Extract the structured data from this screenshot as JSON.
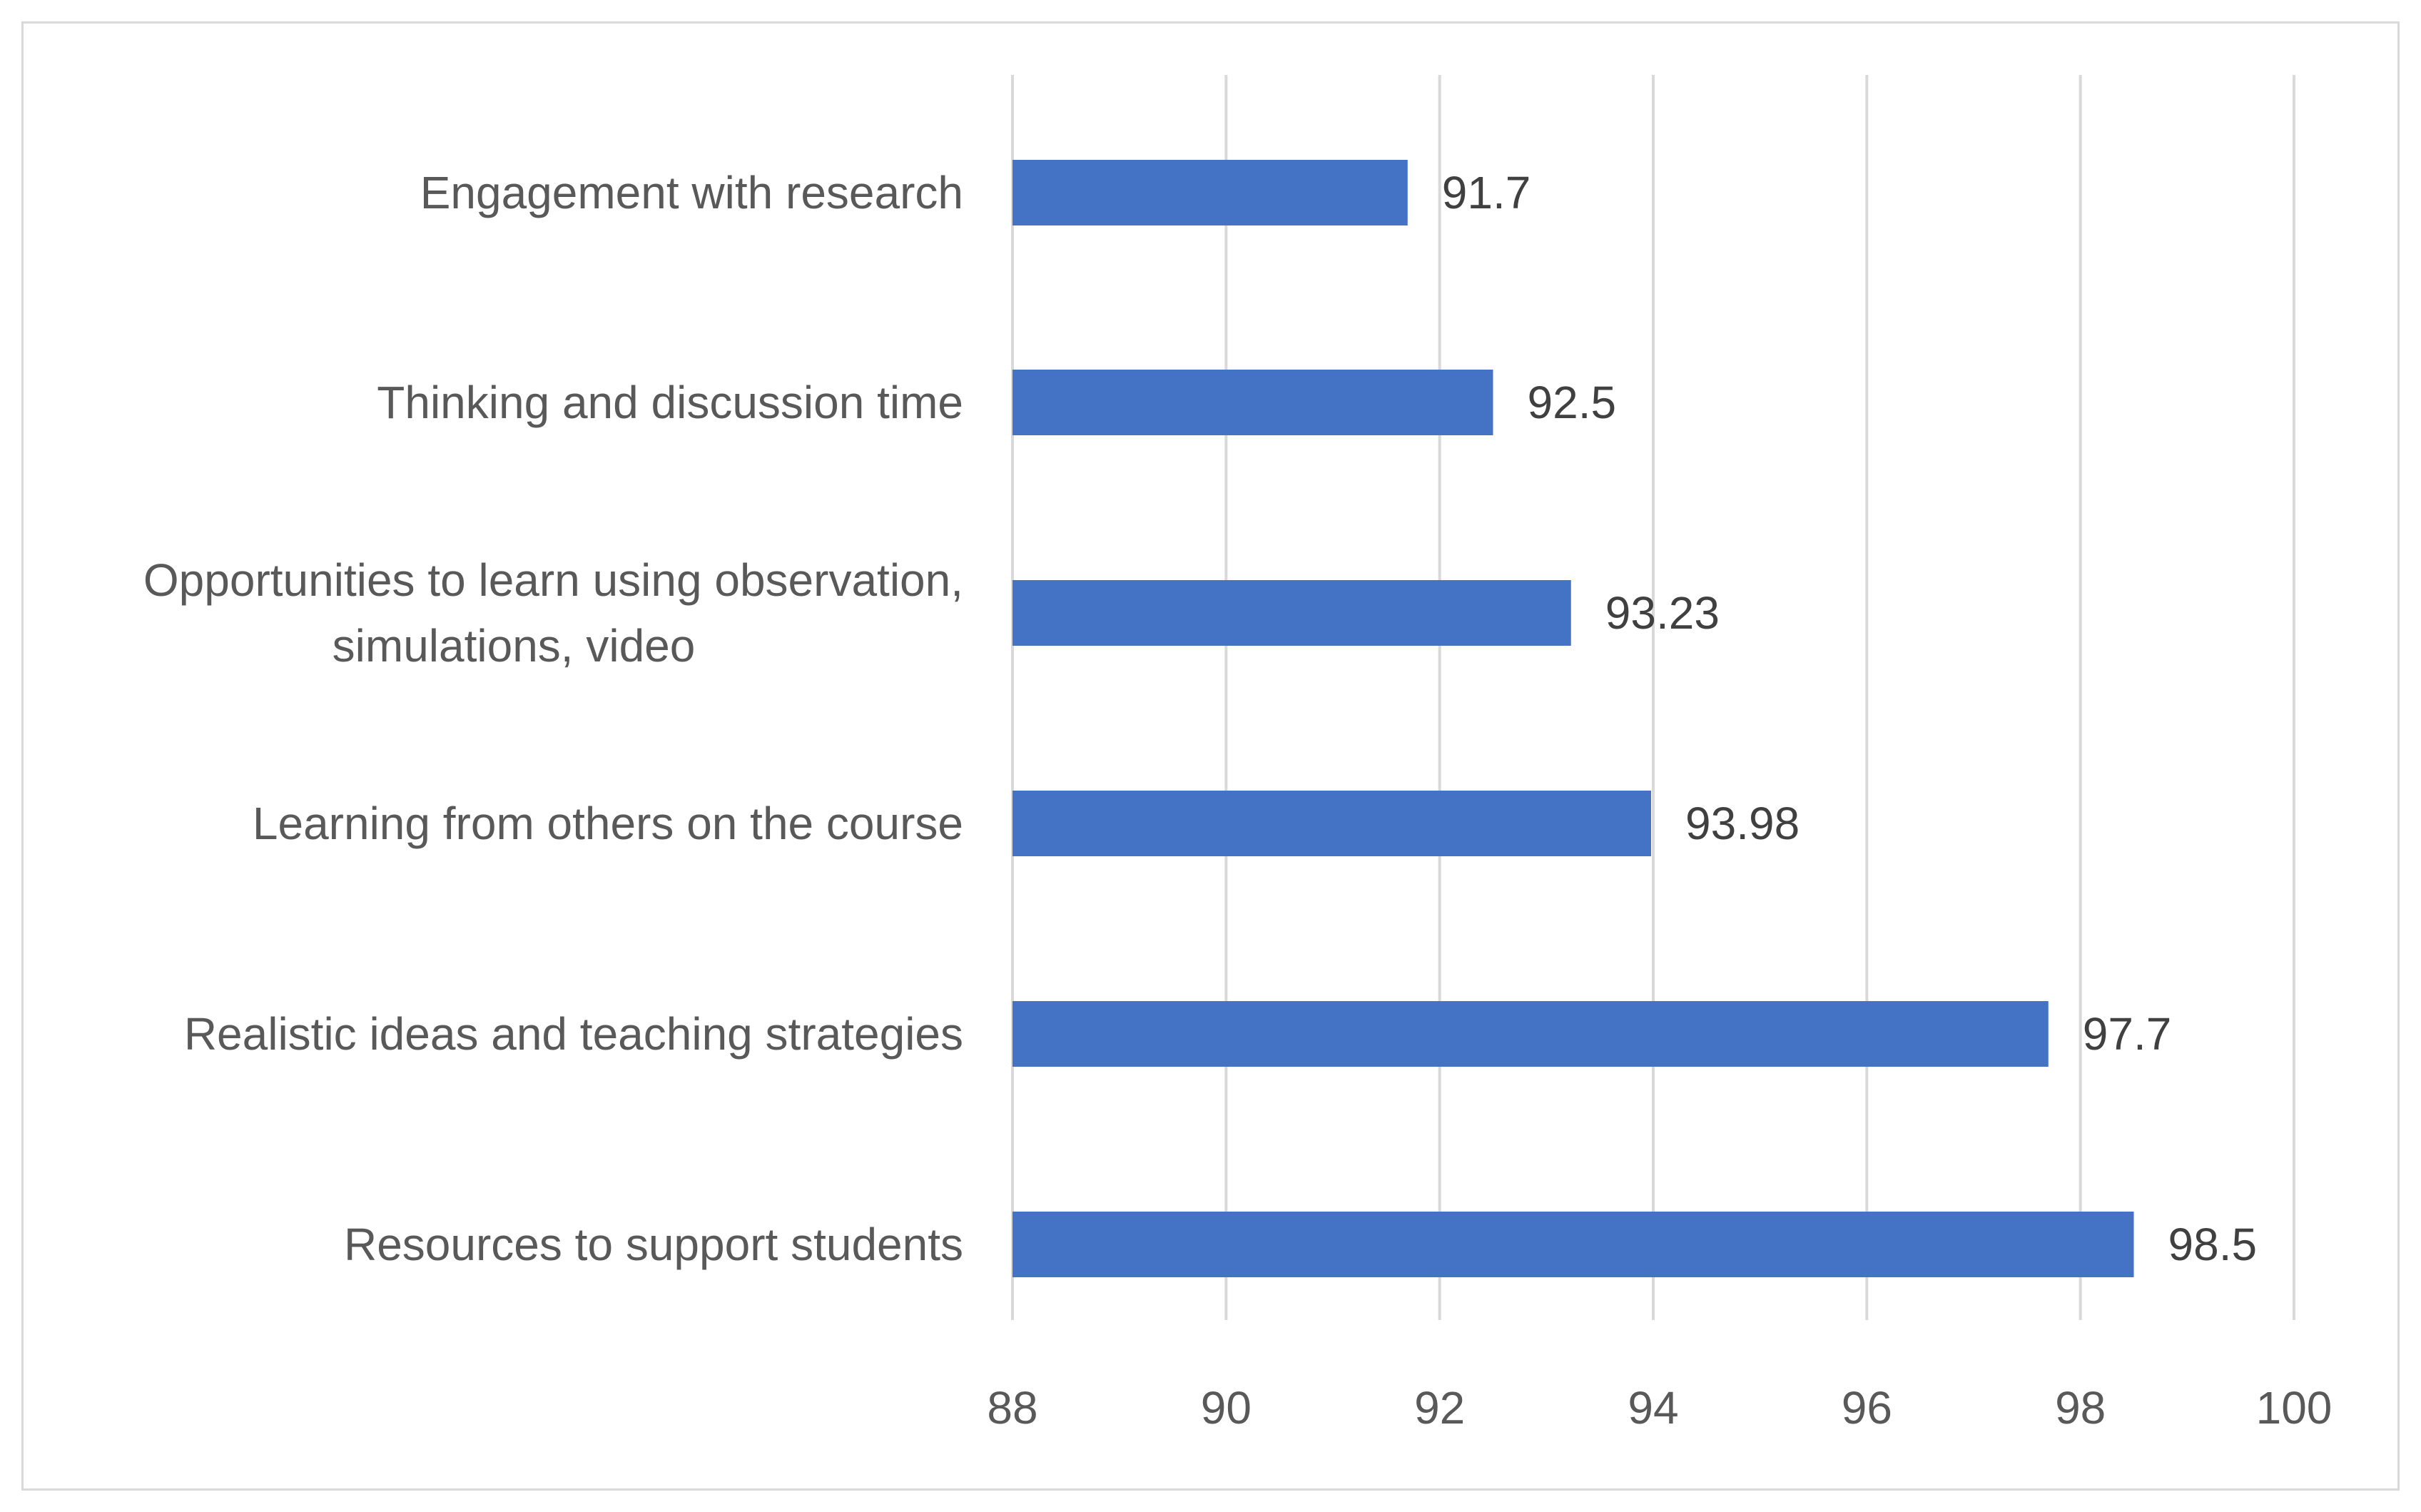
{
  "chart_data": {
    "type": "bar",
    "orientation": "horizontal",
    "title": "",
    "xlabel": "",
    "ylabel": "",
    "xlim": [
      88,
      100
    ],
    "x_ticks": [
      "88",
      "90",
      "92",
      "94",
      "96",
      "98",
      "100"
    ],
    "grid": "vertical",
    "bar_color": "#4472C4",
    "categories": [
      [
        "Engagement with research"
      ],
      [
        "Thinking and discussion time"
      ],
      [
        "Opportunities to learn using observation,",
        "simulations, video"
      ],
      [
        "Learning from others on the course"
      ],
      [
        "Realistic ideas and teaching strategies"
      ],
      [
        "Resources to support students"
      ]
    ],
    "values": [
      91.7,
      92.5,
      93.23,
      93.98,
      97.7,
      98.5
    ],
    "value_labels": [
      "91.7",
      "92.5",
      "93.23",
      "93.98",
      "97.7",
      "98.5"
    ]
  }
}
